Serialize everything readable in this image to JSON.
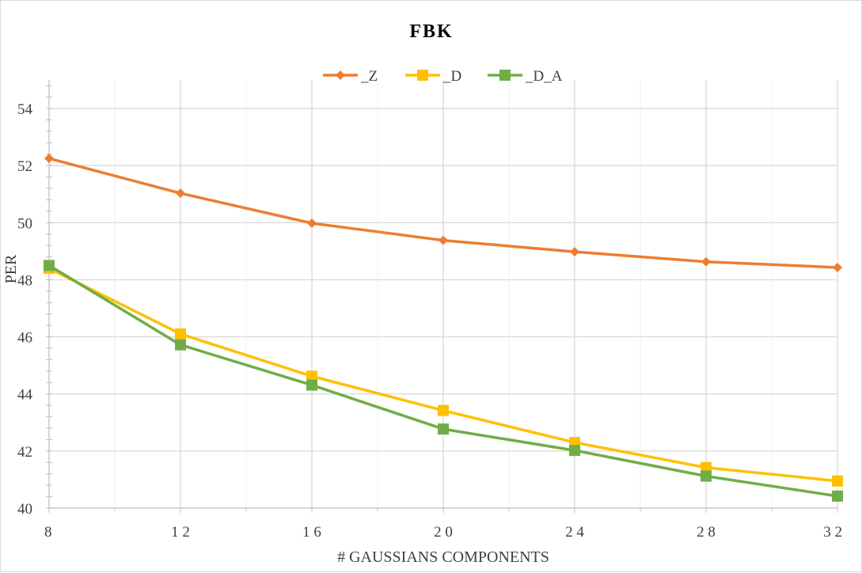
{
  "chart_data": {
    "type": "line",
    "title": "FBK",
    "xlabel": "# GAUSSIANS COMPONENTS",
    "ylabel": "PER",
    "x": [
      8,
      12,
      16,
      20,
      24,
      28,
      32
    ],
    "x_tick_labels": [
      "8",
      "1 2",
      "1 6",
      "2 0",
      "2 4",
      "2 8",
      "3 2"
    ],
    "y_ticks": [
      40,
      42,
      44,
      46,
      48,
      50,
      52,
      54
    ],
    "ylim": [
      40,
      55
    ],
    "xlim": [
      8,
      32
    ],
    "grid": true,
    "legend_position": "top",
    "series": [
      {
        "name": "_Z",
        "color": "#ED7D31",
        "marker": "diamond",
        "values": [
          52.25,
          51.03,
          49.98,
          49.38,
          48.98,
          48.63,
          48.43
        ]
      },
      {
        "name": "_D",
        "color": "#FFC000",
        "marker": "square",
        "values": [
          48.4,
          46.1,
          44.62,
          43.42,
          42.3,
          41.42,
          40.95
        ]
      },
      {
        "name": "_D_A",
        "color": "#70AD47",
        "marker": "square",
        "values": [
          48.5,
          45.72,
          44.31,
          42.77,
          42.02,
          41.12,
          40.42
        ]
      }
    ]
  }
}
